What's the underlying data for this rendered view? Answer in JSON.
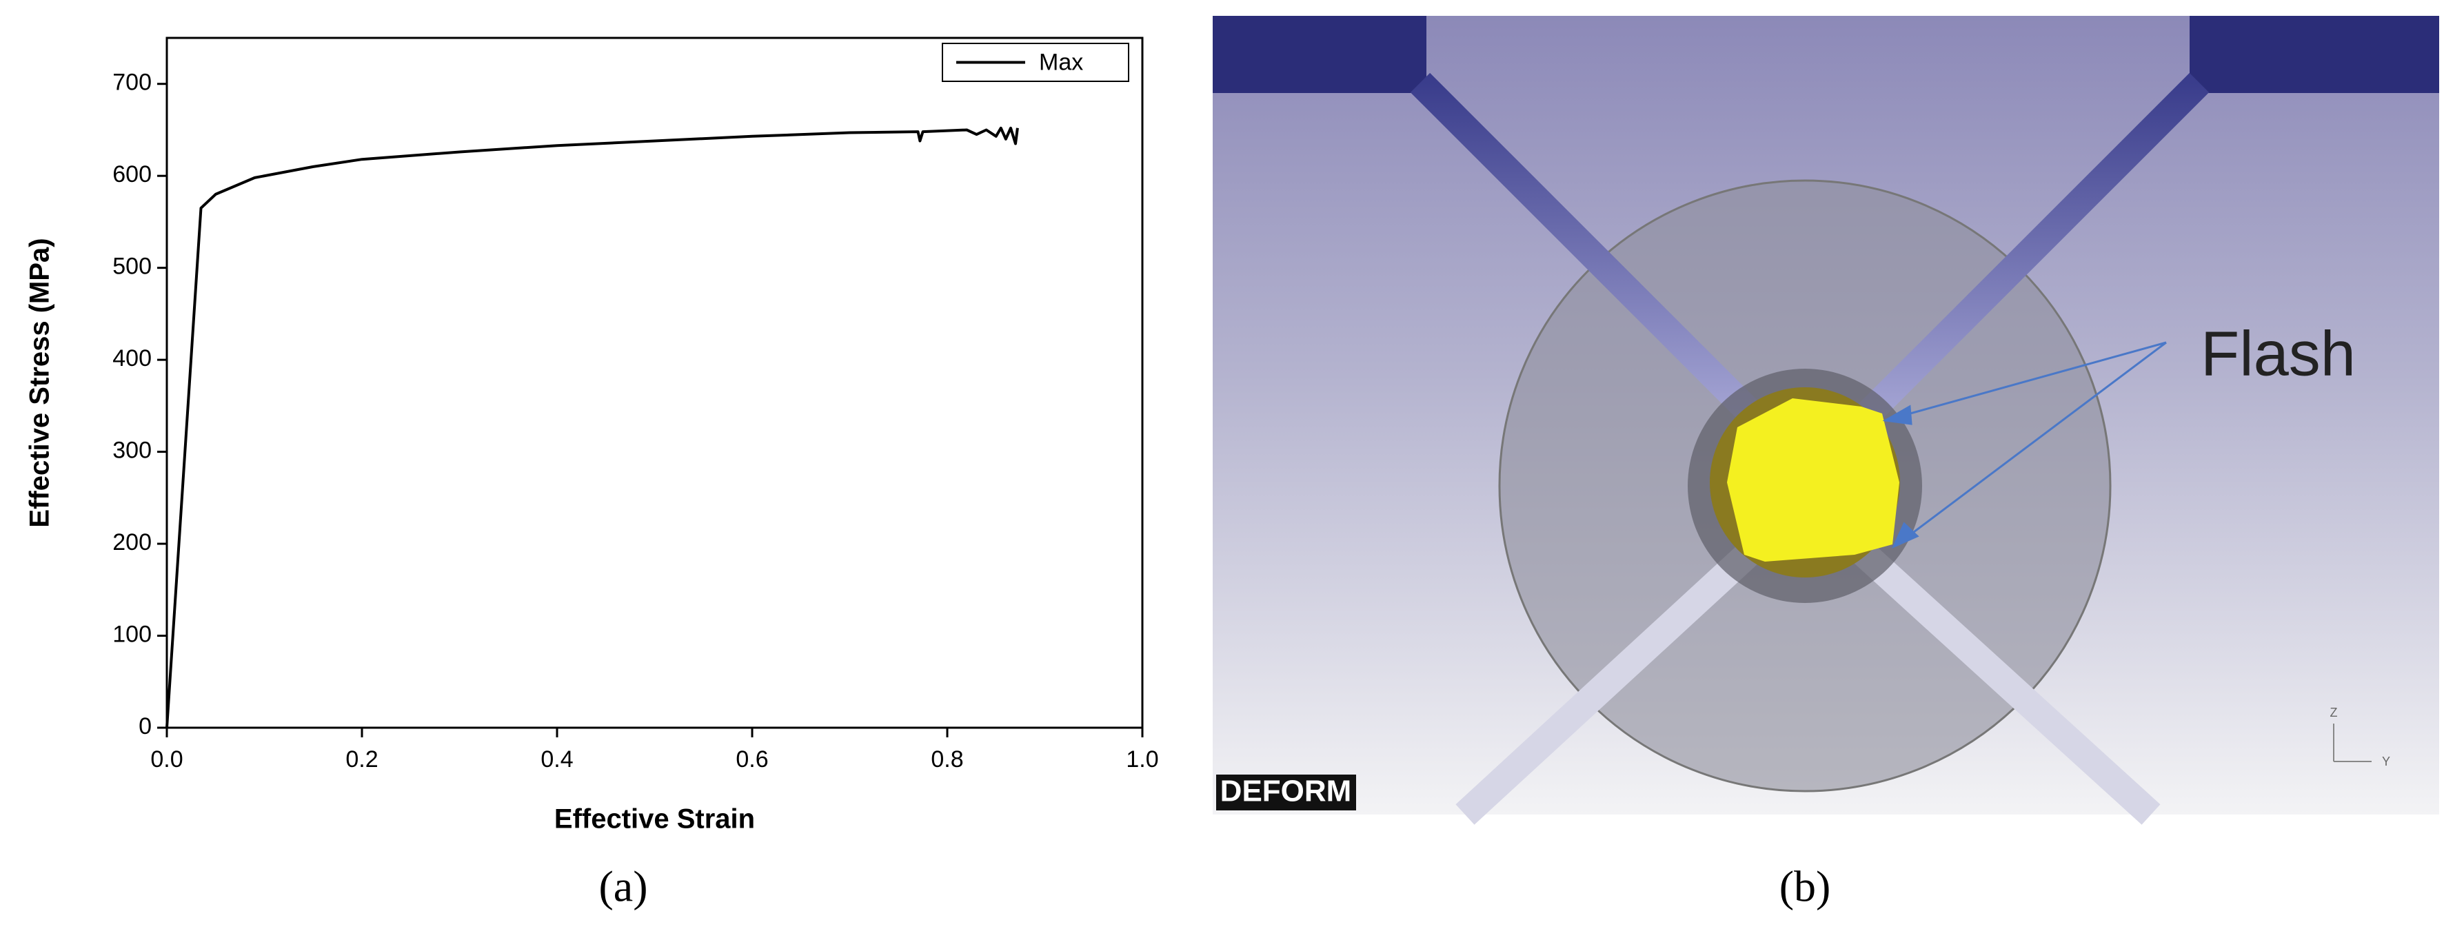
{
  "chart_data": {
    "type": "line",
    "xlabel": "Effective Strain",
    "ylabel": "Effective Stress (MPa)",
    "x": [
      0,
      0.035,
      0.05,
      0.09,
      0.15,
      0.2,
      0.3,
      0.4,
      0.5,
      0.6,
      0.7,
      0.77,
      0.772,
      0.775,
      0.82,
      0.83,
      0.84,
      0.85,
      0.855,
      0.86,
      0.865,
      0.87,
      0.872
    ],
    "series": [
      {
        "name": "Max",
        "color": "#000000",
        "values": [
          0,
          565,
          580,
          598,
          610,
          618,
          626,
          633,
          638,
          643,
          647,
          648,
          638,
          648,
          650,
          645,
          650,
          643,
          652,
          640,
          652,
          635,
          652
        ]
      }
    ],
    "xlim": [
      0,
      1
    ],
    "ylim": [
      0,
      750
    ],
    "xticks": [
      {
        "value": 0,
        "label": "0.0"
      },
      0.2,
      0.4,
      0.6,
      0.8,
      {
        "value": 1,
        "label": "1.0"
      }
    ],
    "yticks": [
      0,
      100,
      200,
      300,
      400,
      500,
      600,
      700
    ],
    "legend": "upper right"
  },
  "figure_b": {
    "annotation": "Flash",
    "logo": "DEFORM",
    "axis_labels": [
      "Z",
      "Y"
    ]
  },
  "captions": [
    "(a)",
    "(b)"
  ]
}
